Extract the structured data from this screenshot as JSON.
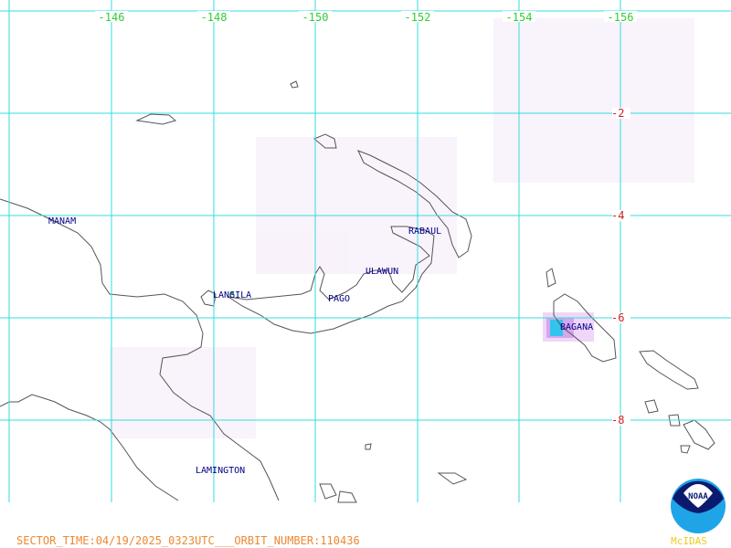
{
  "longitude_labels": [
    "-146",
    "-148",
    "-150",
    "-152",
    "-154",
    "-156"
  ],
  "latitude_labels": [
    "-2",
    "-4",
    "-6",
    "-8"
  ],
  "volcanoes": [
    "MANAM",
    "LANGILA",
    "PAGO",
    "ULAWUN",
    "RABAUL",
    "BAGANA",
    "LAMINGTON"
  ],
  "footer": "SECTOR_TIME:04/19/2025_0323UTC___ORBIT_NUMBER:110436",
  "logo": "NOAA",
  "credit": "McIDAS"
}
